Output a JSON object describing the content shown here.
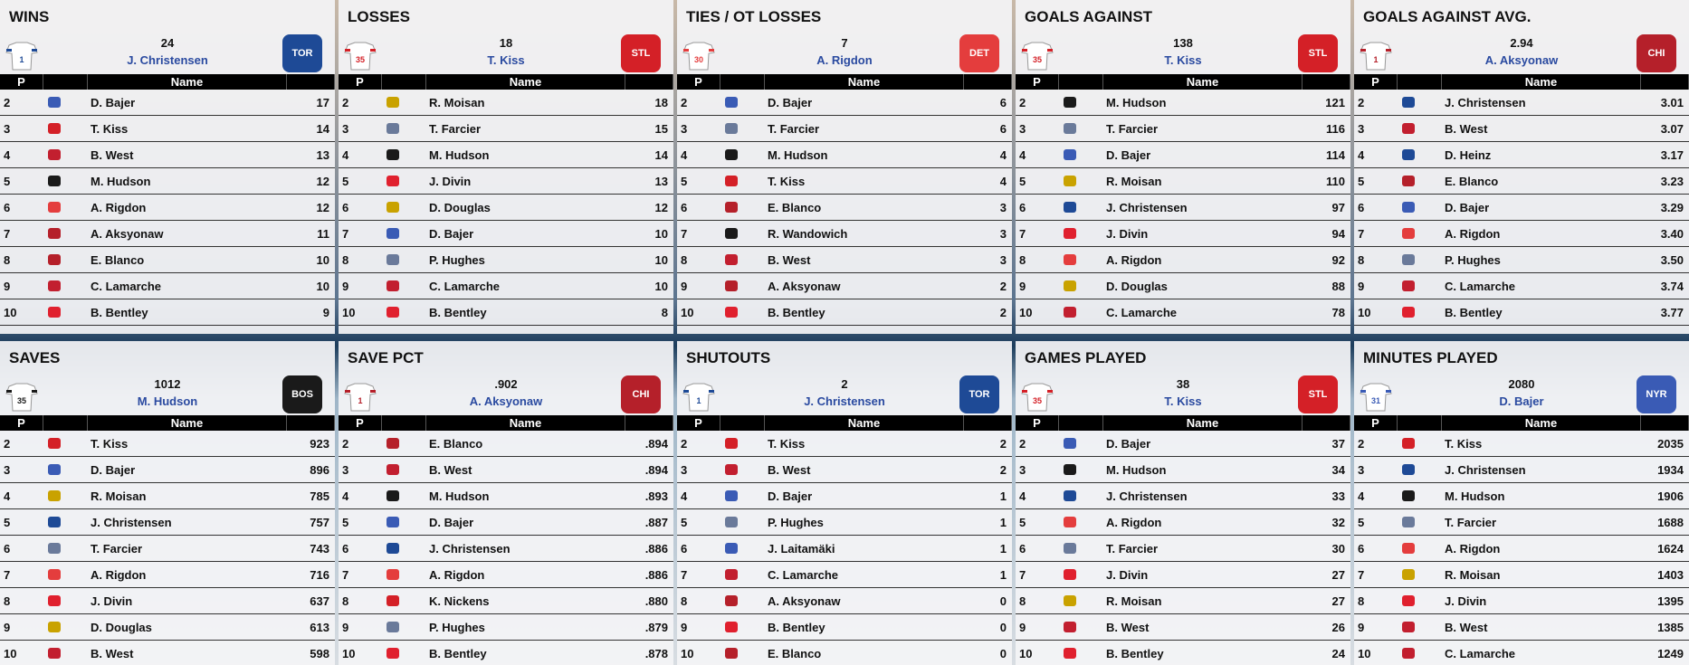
{
  "table_headers": {
    "p": "P",
    "name": "Name"
  },
  "team_colors": {
    "NYR": "#3a5bb5",
    "STL": "#d42027",
    "MTL": "#c21f2f",
    "BOS": "#1a1a1a",
    "DET": "#e43d3d",
    "CHI": "#b5202a",
    "TOR": "#1e4a96",
    "WAN": "#e0202e",
    "PIT": "#c9a200",
    "NYA": "#6a7a9a"
  },
  "panels": [
    {
      "title": "WINS",
      "leader": {
        "value": "24",
        "name": "J. Christensen",
        "team": "TOR",
        "number": "1"
      },
      "rows": [
        {
          "p": "2",
          "team": "NYR",
          "name": "D. Bajer",
          "value": "17"
        },
        {
          "p": "3",
          "team": "STL",
          "name": "T. Kiss",
          "value": "14"
        },
        {
          "p": "4",
          "team": "MTL",
          "name": "B. West",
          "value": "13"
        },
        {
          "p": "5",
          "team": "BOS",
          "name": "M. Hudson",
          "value": "12"
        },
        {
          "p": "6",
          "team": "DET",
          "name": "A. Rigdon",
          "value": "12"
        },
        {
          "p": "7",
          "team": "CHI",
          "name": "A. Aksyonaw",
          "value": "11"
        },
        {
          "p": "8",
          "team": "CHI",
          "name": "E. Blanco",
          "value": "10"
        },
        {
          "p": "9",
          "team": "MTL",
          "name": "C. Lamarche",
          "value": "10"
        },
        {
          "p": "10",
          "team": "WAN",
          "name": "B. Bentley",
          "value": "9"
        }
      ]
    },
    {
      "title": "LOSSES",
      "leader": {
        "value": "18",
        "name": "T. Kiss",
        "team": "STL",
        "number": "35"
      },
      "rows": [
        {
          "p": "2",
          "team": "PIT",
          "name": "R. Moisan",
          "value": "18"
        },
        {
          "p": "3",
          "team": "NYA",
          "name": "T. Farcier",
          "value": "15"
        },
        {
          "p": "4",
          "team": "BOS",
          "name": "M. Hudson",
          "value": "14"
        },
        {
          "p": "5",
          "team": "WAN",
          "name": "J. Divin",
          "value": "13"
        },
        {
          "p": "6",
          "team": "PIT",
          "name": "D. Douglas",
          "value": "12"
        },
        {
          "p": "7",
          "team": "NYR",
          "name": "D. Bajer",
          "value": "10"
        },
        {
          "p": "8",
          "team": "NYA",
          "name": "P. Hughes",
          "value": "10"
        },
        {
          "p": "9",
          "team": "MTL",
          "name": "C. Lamarche",
          "value": "10"
        },
        {
          "p": "10",
          "team": "WAN",
          "name": "B. Bentley",
          "value": "8"
        }
      ]
    },
    {
      "title": "TIES / OT LOSSES",
      "leader": {
        "value": "7",
        "name": "A. Rigdon",
        "team": "DET",
        "number": "30"
      },
      "rows": [
        {
          "p": "2",
          "team": "NYR",
          "name": "D. Bajer",
          "value": "6"
        },
        {
          "p": "3",
          "team": "NYA",
          "name": "T. Farcier",
          "value": "6"
        },
        {
          "p": "4",
          "team": "BOS",
          "name": "M. Hudson",
          "value": "4"
        },
        {
          "p": "5",
          "team": "STL",
          "name": "T. Kiss",
          "value": "4"
        },
        {
          "p": "6",
          "team": "CHI",
          "name": "E. Blanco",
          "value": "3"
        },
        {
          "p": "7",
          "team": "BOS",
          "name": "R. Wandowich",
          "value": "3"
        },
        {
          "p": "8",
          "team": "MTL",
          "name": "B. West",
          "value": "3"
        },
        {
          "p": "9",
          "team": "CHI",
          "name": "A. Aksyonaw",
          "value": "2"
        },
        {
          "p": "10",
          "team": "WAN",
          "name": "B. Bentley",
          "value": "2"
        }
      ]
    },
    {
      "title": "GOALS AGAINST",
      "leader": {
        "value": "138",
        "name": "T. Kiss",
        "team": "STL",
        "number": "35"
      },
      "rows": [
        {
          "p": "2",
          "team": "BOS",
          "name": "M. Hudson",
          "value": "121"
        },
        {
          "p": "3",
          "team": "NYA",
          "name": "T. Farcier",
          "value": "116"
        },
        {
          "p": "4",
          "team": "NYR",
          "name": "D. Bajer",
          "value": "114"
        },
        {
          "p": "5",
          "team": "PIT",
          "name": "R. Moisan",
          "value": "110"
        },
        {
          "p": "6",
          "team": "TOR",
          "name": "J. Christensen",
          "value": "97"
        },
        {
          "p": "7",
          "team": "WAN",
          "name": "J. Divin",
          "value": "94"
        },
        {
          "p": "8",
          "team": "DET",
          "name": "A. Rigdon",
          "value": "92"
        },
        {
          "p": "9",
          "team": "PIT",
          "name": "D. Douglas",
          "value": "88"
        },
        {
          "p": "10",
          "team": "MTL",
          "name": "C. Lamarche",
          "value": "78"
        }
      ]
    },
    {
      "title": "GOALS AGAINST AVG.",
      "leader": {
        "value": "2.94",
        "name": "A. Aksyonaw",
        "team": "CHI",
        "number": "1"
      },
      "rows": [
        {
          "p": "2",
          "team": "TOR",
          "name": "J. Christensen",
          "value": "3.01"
        },
        {
          "p": "3",
          "team": "MTL",
          "name": "B. West",
          "value": "3.07"
        },
        {
          "p": "4",
          "team": "TOR",
          "name": "D. Heinz",
          "value": "3.17"
        },
        {
          "p": "5",
          "team": "CHI",
          "name": "E. Blanco",
          "value": "3.23"
        },
        {
          "p": "6",
          "team": "NYR",
          "name": "D. Bajer",
          "value": "3.29"
        },
        {
          "p": "7",
          "team": "DET",
          "name": "A. Rigdon",
          "value": "3.40"
        },
        {
          "p": "8",
          "team": "NYA",
          "name": "P. Hughes",
          "value": "3.50"
        },
        {
          "p": "9",
          "team": "MTL",
          "name": "C. Lamarche",
          "value": "3.74"
        },
        {
          "p": "10",
          "team": "WAN",
          "name": "B. Bentley",
          "value": "3.77"
        }
      ]
    },
    {
      "title": "SAVES",
      "leader": {
        "value": "1012",
        "name": "M. Hudson",
        "team": "BOS",
        "number": "35"
      },
      "rows": [
        {
          "p": "2",
          "team": "STL",
          "name": "T. Kiss",
          "value": "923"
        },
        {
          "p": "3",
          "team": "NYR",
          "name": "D. Bajer",
          "value": "896"
        },
        {
          "p": "4",
          "team": "PIT",
          "name": "R. Moisan",
          "value": "785"
        },
        {
          "p": "5",
          "team": "TOR",
          "name": "J. Christensen",
          "value": "757"
        },
        {
          "p": "6",
          "team": "NYA",
          "name": "T. Farcier",
          "value": "743"
        },
        {
          "p": "7",
          "team": "DET",
          "name": "A. Rigdon",
          "value": "716"
        },
        {
          "p": "8",
          "team": "WAN",
          "name": "J. Divin",
          "value": "637"
        },
        {
          "p": "9",
          "team": "PIT",
          "name": "D. Douglas",
          "value": "613"
        },
        {
          "p": "10",
          "team": "MTL",
          "name": "B. West",
          "value": "598"
        }
      ]
    },
    {
      "title": "SAVE PCT",
      "leader": {
        "value": ".902",
        "name": "A. Aksyonaw",
        "team": "CHI",
        "number": "1"
      },
      "rows": [
        {
          "p": "2",
          "team": "CHI",
          "name": "E. Blanco",
          "value": ".894"
        },
        {
          "p": "3",
          "team": "MTL",
          "name": "B. West",
          "value": ".894"
        },
        {
          "p": "4",
          "team": "BOS",
          "name": "M. Hudson",
          "value": ".893"
        },
        {
          "p": "5",
          "team": "NYR",
          "name": "D. Bajer",
          "value": ".887"
        },
        {
          "p": "6",
          "team": "TOR",
          "name": "J. Christensen",
          "value": ".886"
        },
        {
          "p": "7",
          "team": "DET",
          "name": "A. Rigdon",
          "value": ".886"
        },
        {
          "p": "8",
          "team": "STL",
          "name": "K. Nickens",
          "value": ".880"
        },
        {
          "p": "9",
          "team": "NYA",
          "name": "P. Hughes",
          "value": ".879"
        },
        {
          "p": "10",
          "team": "WAN",
          "name": "B. Bentley",
          "value": ".878"
        }
      ]
    },
    {
      "title": "SHUTOUTS",
      "leader": {
        "value": "2",
        "name": "J. Christensen",
        "team": "TOR",
        "number": "1"
      },
      "rows": [
        {
          "p": "2",
          "team": "STL",
          "name": "T. Kiss",
          "value": "2"
        },
        {
          "p": "3",
          "team": "MTL",
          "name": "B. West",
          "value": "2"
        },
        {
          "p": "4",
          "team": "NYR",
          "name": "D. Bajer",
          "value": "1"
        },
        {
          "p": "5",
          "team": "NYA",
          "name": "P. Hughes",
          "value": "1"
        },
        {
          "p": "6",
          "team": "NYR",
          "name": "J. Laitamäki",
          "value": "1"
        },
        {
          "p": "7",
          "team": "MTL",
          "name": "C. Lamarche",
          "value": "1"
        },
        {
          "p": "8",
          "team": "CHI",
          "name": "A. Aksyonaw",
          "value": "0"
        },
        {
          "p": "9",
          "team": "WAN",
          "name": "B. Bentley",
          "value": "0"
        },
        {
          "p": "10",
          "team": "CHI",
          "name": "E. Blanco",
          "value": "0"
        }
      ]
    },
    {
      "title": "GAMES PLAYED",
      "leader": {
        "value": "38",
        "name": "T. Kiss",
        "team": "STL",
        "number": "35"
      },
      "rows": [
        {
          "p": "2",
          "team": "NYR",
          "name": "D. Bajer",
          "value": "37"
        },
        {
          "p": "3",
          "team": "BOS",
          "name": "M. Hudson",
          "value": "34"
        },
        {
          "p": "4",
          "team": "TOR",
          "name": "J. Christensen",
          "value": "33"
        },
        {
          "p": "5",
          "team": "DET",
          "name": "A. Rigdon",
          "value": "32"
        },
        {
          "p": "6",
          "team": "NYA",
          "name": "T. Farcier",
          "value": "30"
        },
        {
          "p": "7",
          "team": "WAN",
          "name": "J. Divin",
          "value": "27"
        },
        {
          "p": "8",
          "team": "PIT",
          "name": "R. Moisan",
          "value": "27"
        },
        {
          "p": "9",
          "team": "MTL",
          "name": "B. West",
          "value": "26"
        },
        {
          "p": "10",
          "team": "WAN",
          "name": "B. Bentley",
          "value": "24"
        }
      ]
    },
    {
      "title": "MINUTES PLAYED",
      "leader": {
        "value": "2080",
        "name": "D. Bajer",
        "team": "NYR",
        "number": "31"
      },
      "rows": [
        {
          "p": "2",
          "team": "STL",
          "name": "T. Kiss",
          "value": "2035"
        },
        {
          "p": "3",
          "team": "TOR",
          "name": "J. Christensen",
          "value": "1934"
        },
        {
          "p": "4",
          "team": "BOS",
          "name": "M. Hudson",
          "value": "1906"
        },
        {
          "p": "5",
          "team": "NYA",
          "name": "T. Farcier",
          "value": "1688"
        },
        {
          "p": "6",
          "team": "DET",
          "name": "A. Rigdon",
          "value": "1624"
        },
        {
          "p": "7",
          "team": "PIT",
          "name": "R. Moisan",
          "value": "1403"
        },
        {
          "p": "8",
          "team": "WAN",
          "name": "J. Divin",
          "value": "1395"
        },
        {
          "p": "9",
          "team": "MTL",
          "name": "B. West",
          "value": "1385"
        },
        {
          "p": "10",
          "team": "MTL",
          "name": "C. Lamarche",
          "value": "1249"
        }
      ]
    }
  ]
}
